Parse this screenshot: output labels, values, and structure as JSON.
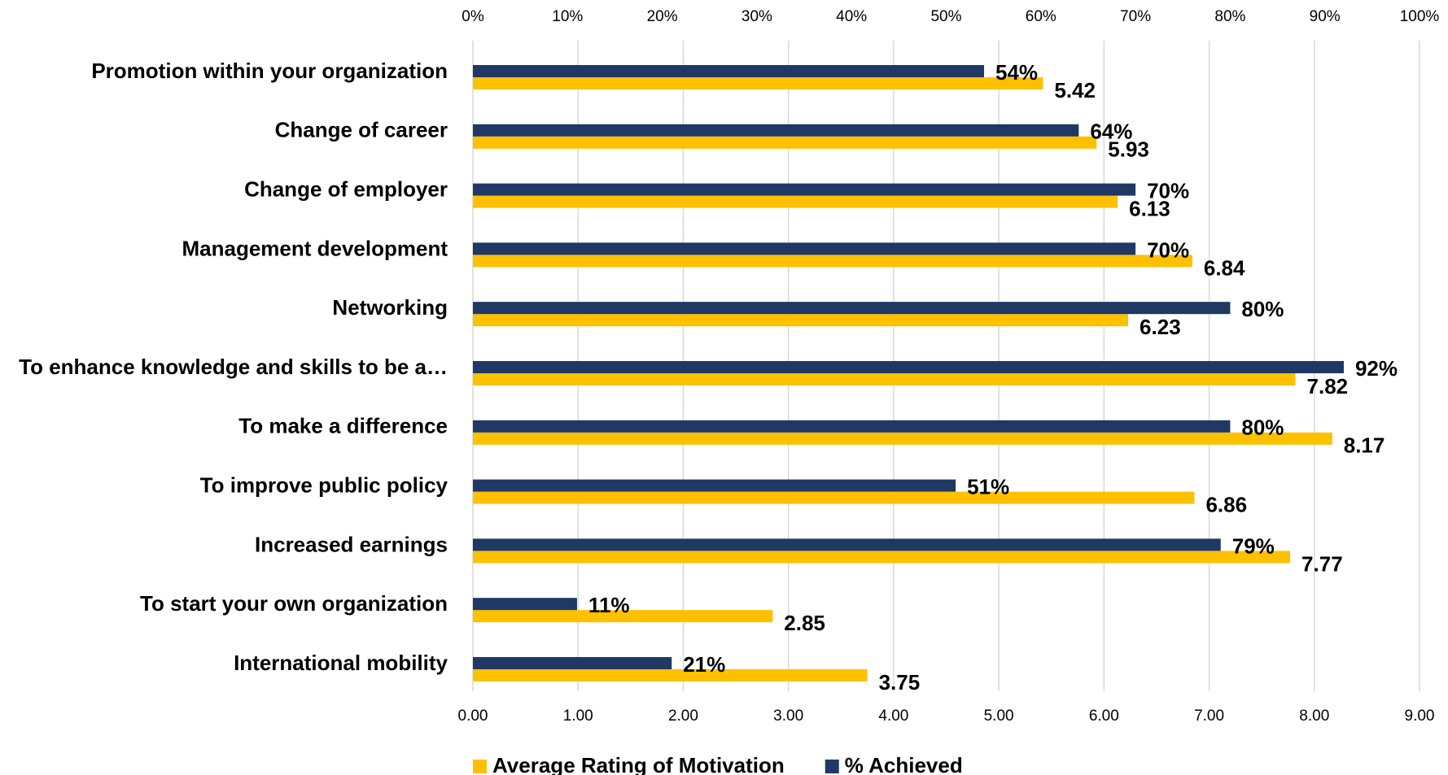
{
  "chart_data": {
    "type": "bar",
    "orientation": "horizontal",
    "categories": [
      "Promotion within your organization",
      "Change of career",
      "Change of employer",
      "Management development",
      "Networking",
      "To enhance knowledge and skills to be a…",
      "To make a difference",
      "To improve public policy",
      "Increased earnings",
      "To start your own organization",
      "International mobility"
    ],
    "series": [
      {
        "name": "Average Rating of Motivation",
        "color": "#FFC000",
        "axis": "x",
        "values": [
          5.42,
          5.93,
          6.13,
          6.84,
          6.23,
          7.82,
          8.17,
          6.86,
          7.77,
          2.85,
          3.75
        ]
      },
      {
        "name": "% Achieved",
        "color": "#1F3864",
        "axis": "x2",
        "values": [
          54,
          64,
          70,
          70,
          80,
          92,
          80,
          51,
          79,
          11,
          21
        ],
        "value_labels": [
          "54%",
          "64%",
          "70%",
          "70%",
          "80%",
          "92%",
          "80%",
          "51%",
          "79%",
          "11%",
          "21%"
        ]
      }
    ],
    "xlim": [
      0,
      9
    ],
    "xticks": [
      {
        "value": 0,
        "label": "0.00"
      },
      {
        "value": 1,
        "label": "1.00"
      },
      {
        "value": 2,
        "label": "2.00"
      },
      {
        "value": 3,
        "label": "3.00"
      },
      {
        "value": 4,
        "label": "4.00"
      },
      {
        "value": 5,
        "label": "5.00"
      },
      {
        "value": 6,
        "label": "6.00"
      },
      {
        "value": 7,
        "label": "7.00"
      },
      {
        "value": 8,
        "label": "8.00"
      },
      {
        "value": 9,
        "label": "9.00"
      }
    ],
    "x2lim": [
      0,
      100
    ],
    "x2ticks": [
      {
        "value": 0,
        "label": "0%"
      },
      {
        "value": 10,
        "label": "10%"
      },
      {
        "value": 20,
        "label": "20%"
      },
      {
        "value": 30,
        "label": "30%"
      },
      {
        "value": 40,
        "label": "40%"
      },
      {
        "value": 50,
        "label": "50%"
      },
      {
        "value": 60,
        "label": "60%"
      },
      {
        "value": 70,
        "label": "70%"
      },
      {
        "value": 80,
        "label": "80%"
      },
      {
        "value": 90,
        "label": "90%"
      },
      {
        "value": 100,
        "label": "100%"
      }
    ],
    "grid": true,
    "legend": "bottom"
  }
}
